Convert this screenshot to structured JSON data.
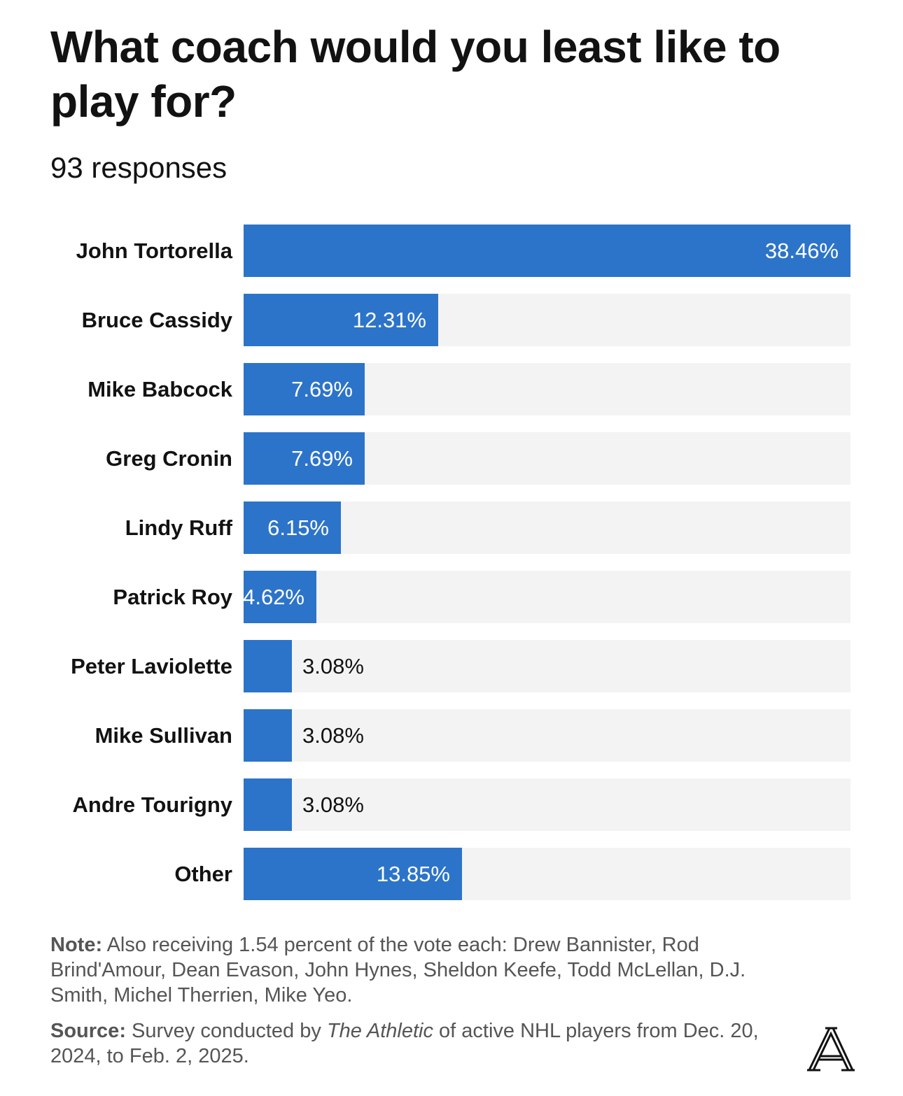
{
  "title": "What coach would you least like to play for?",
  "subtitle": "93 responses",
  "colors": {
    "bar": "#2c74c9",
    "track": "#f3f3f3",
    "text": "#121212",
    "muted": "#555555"
  },
  "chart_data": {
    "type": "bar",
    "orientation": "horizontal",
    "title": "What coach would you least like to play for?",
    "subtitle": "93 responses",
    "categories": [
      "John Tortorella",
      "Bruce Cassidy",
      "Mike Babcock",
      "Greg Cronin",
      "Lindy Ruff",
      "Patrick Roy",
      "Peter Laviolette",
      "Mike Sullivan",
      "Andre Tourigny",
      "Other"
    ],
    "values": [
      38.46,
      12.31,
      7.69,
      7.69,
      6.15,
      4.62,
      3.08,
      3.08,
      3.08,
      13.85
    ],
    "value_labels": [
      "38.46%",
      "12.31%",
      "7.69%",
      "7.69%",
      "6.15%",
      "4.62%",
      "3.08%",
      "3.08%",
      "3.08%",
      "13.85%"
    ],
    "xlim": [
      0,
      38.46
    ],
    "grid": false,
    "legend": "none"
  },
  "note": {
    "label": "Note:",
    "text": " Also receiving 1.54 percent of the vote each: Drew Bannister, Rod Brind'Amour, Dean Evason, John Hynes, Sheldon Keefe, Todd McLellan, D.J. Smith, Michel Therrien, Mike Yeo."
  },
  "source": {
    "label": "Source:",
    "text_before": " Survey conducted by ",
    "publication": "The Athletic",
    "text_after": " of active NHL players from Dec. 20, 2024, to Feb. 2, 2025."
  },
  "logo": {
    "icon": "the-athletic-logo",
    "letter": "A"
  }
}
